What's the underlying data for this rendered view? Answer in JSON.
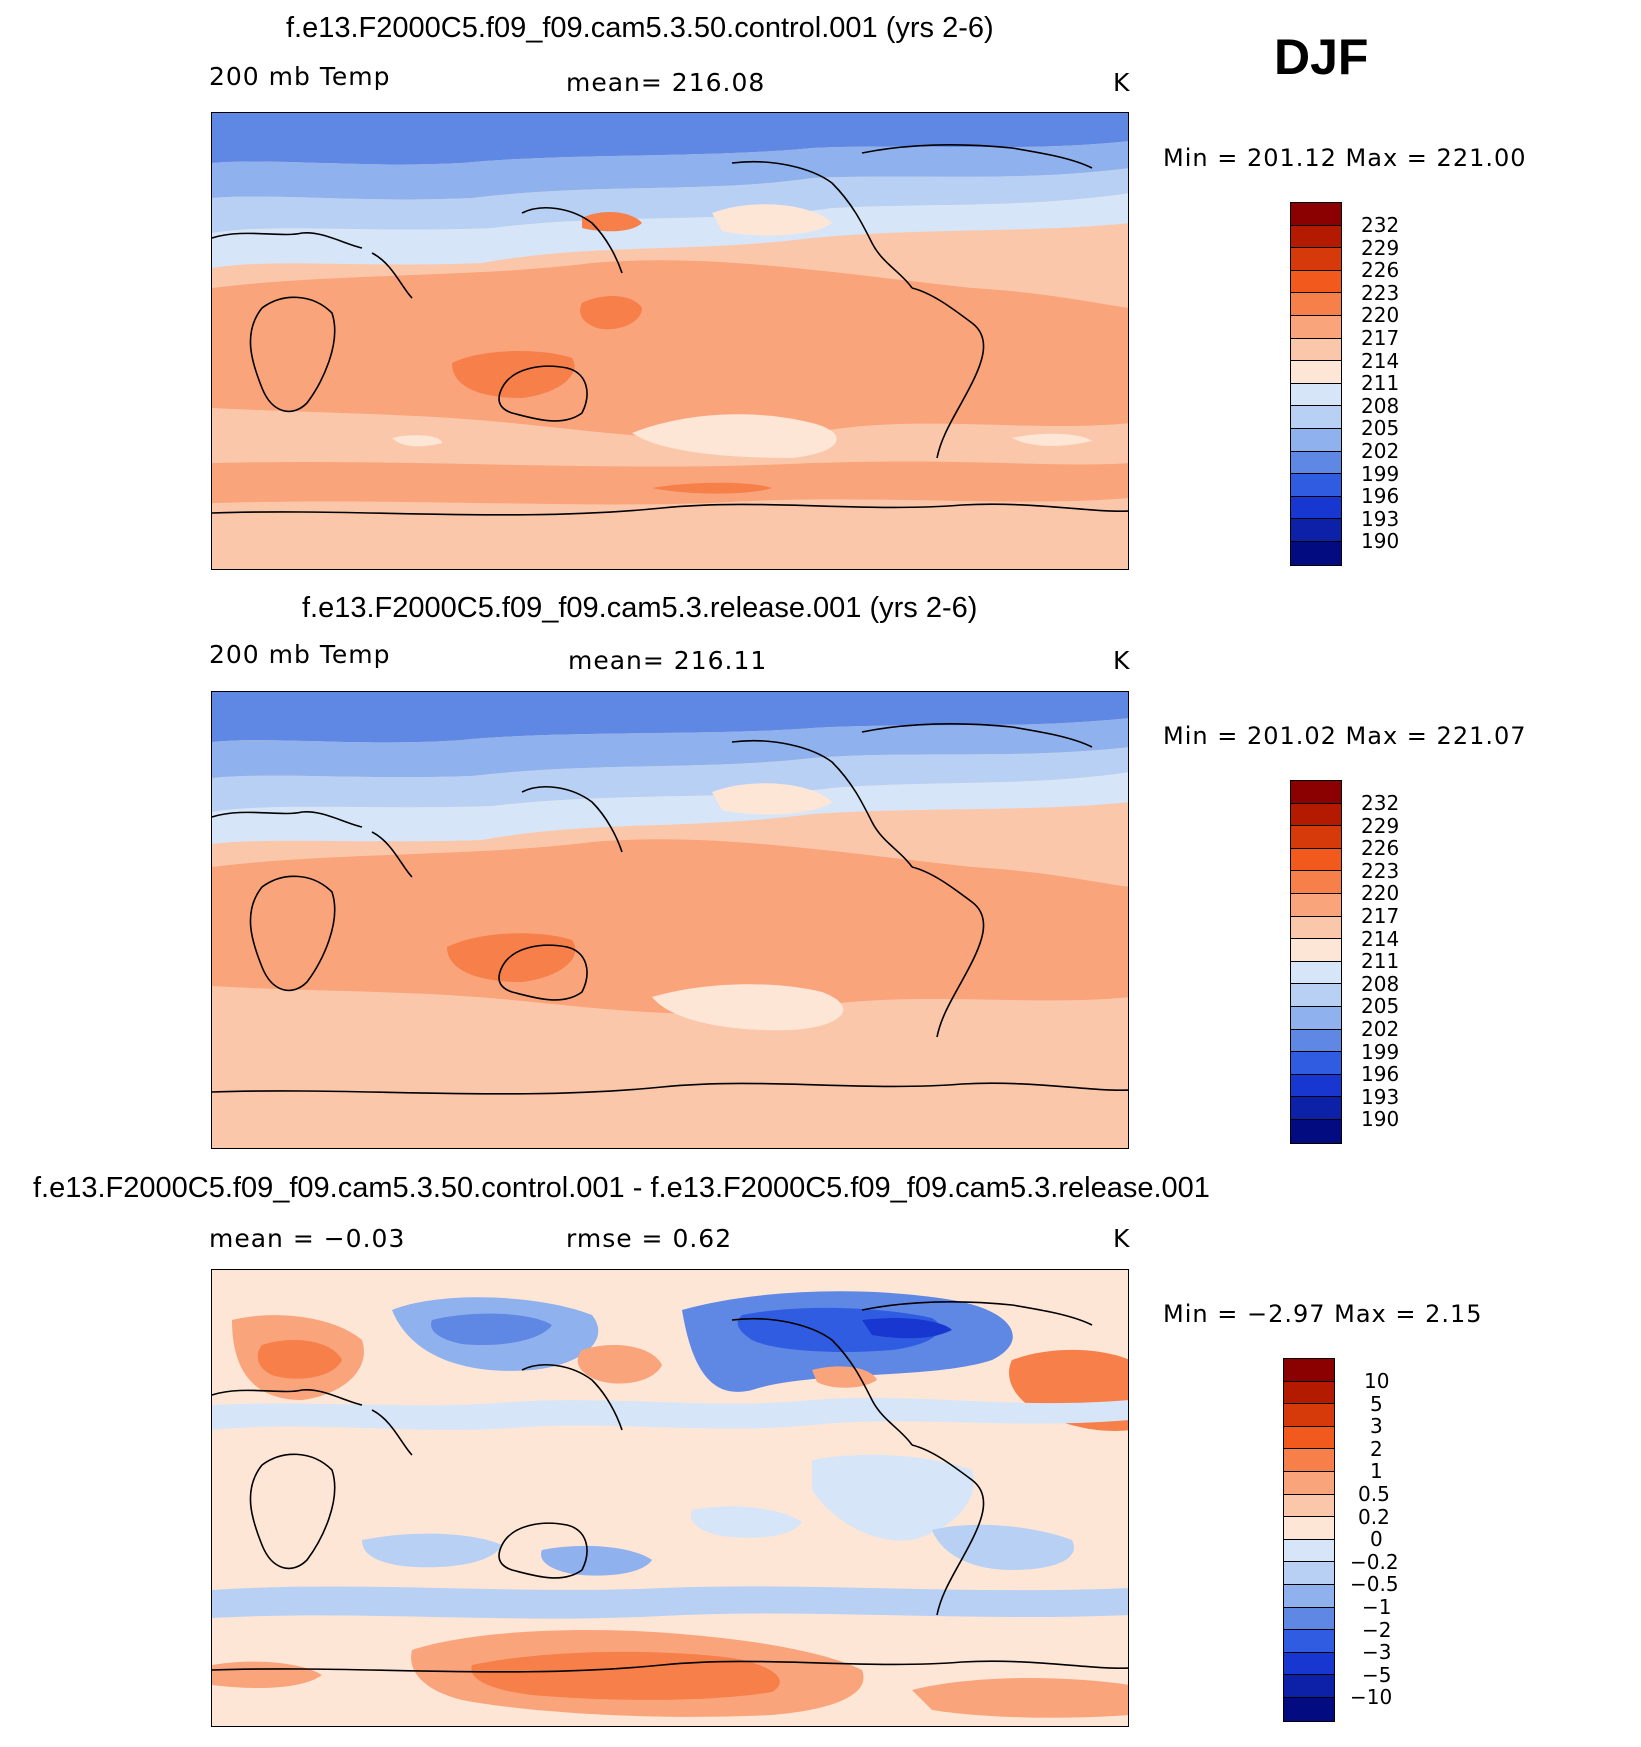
{
  "season": "DJF",
  "panels": [
    {
      "title": "f.e13.F2000C5.f09_f09.cam5.3.50.control.001 (yrs 2-6)",
      "left_label": "200 mb Temp",
      "center_label": "mean=  216.08",
      "units": "K",
      "minmax": "Min  =  201.12  Max  =  221.00",
      "colorbar_labels": [
        "232",
        "229",
        "226",
        "223",
        "220",
        "217",
        "214",
        "211",
        "208",
        "205",
        "202",
        "199",
        "196",
        "193",
        "190"
      ]
    },
    {
      "title": "f.e13.F2000C5.f09_f09.cam5.3.release.001 (yrs 2-6)",
      "left_label": "200 mb Temp",
      "center_label": "mean=  216.11",
      "units": "K",
      "minmax": "Min  =  201.02  Max  =  221.07",
      "colorbar_labels": [
        "232",
        "229",
        "226",
        "223",
        "220",
        "217",
        "214",
        "211",
        "208",
        "205",
        "202",
        "199",
        "196",
        "193",
        "190"
      ]
    },
    {
      "title": "f.e13.F2000C5.f09_f09.cam5.3.50.control.001 - f.e13.F2000C5.f09_f09.cam5.3.release.001",
      "left_label": "mean =    −0.03",
      "center_label": "rmse =     0.62",
      "units": "K",
      "minmax": "Min  =    −2.97  Max  =     2.15",
      "colorbar_labels": [
        "10",
        "5",
        "3",
        "2",
        "1",
        "0.5",
        "0.2",
        "0",
        "−0.2",
        "−0.5",
        "−1",
        "−2",
        "−3",
        "−5",
        "−10"
      ]
    }
  ],
  "colors": {
    "colorbar": [
      "#8b0000",
      "#b31a00",
      "#d63a0a",
      "#f25a1d",
      "#f67f4a",
      "#f9a47b",
      "#fbc7aa",
      "#fde6d6",
      "#d6e6f8",
      "#b7d0f3",
      "#8fb1ed",
      "#5f87e4",
      "#2f5ce0",
      "#1837d0",
      "#0c20a8",
      "#020c80"
    ],
    "map_palette": [
      "#2e5de0",
      "#5f87e4",
      "#8fb1ed",
      "#b7d0f3",
      "#d6e6f8",
      "#fde6d6",
      "#fbc7aa",
      "#f9a47b",
      "#f67f4a"
    ]
  },
  "chart_data": [
    {
      "type": "heatmap",
      "title": "f.e13.F2000C5.f09_f09.cam5.3.50.control.001 (yrs 2-6)",
      "variable": "200 mb Temp",
      "units": "K",
      "mean": 216.08,
      "min": 201.12,
      "max": 221.0,
      "contour_levels": [
        190,
        193,
        196,
        199,
        202,
        205,
        208,
        211,
        214,
        217,
        220,
        223,
        226,
        229,
        232
      ]
    },
    {
      "type": "heatmap",
      "title": "f.e13.F2000C5.f09_f09.cam5.3.release.001 (yrs 2-6)",
      "variable": "200 mb Temp",
      "units": "K",
      "mean": 216.11,
      "min": 201.02,
      "max": 221.07,
      "contour_levels": [
        190,
        193,
        196,
        199,
        202,
        205,
        208,
        211,
        214,
        217,
        220,
        223,
        226,
        229,
        232
      ]
    },
    {
      "type": "heatmap",
      "title": "f.e13.F2000C5.f09_f09.cam5.3.50.control.001 - f.e13.F2000C5.f09_f09.cam5.3.release.001",
      "units": "K",
      "mean": -0.03,
      "rmse": 0.62,
      "min": -2.97,
      "max": 2.15,
      "contour_levels": [
        -10,
        -5,
        -3,
        -2,
        -1,
        -0.5,
        -0.2,
        0,
        0.2,
        0.5,
        1,
        2,
        3,
        5,
        10
      ]
    }
  ]
}
